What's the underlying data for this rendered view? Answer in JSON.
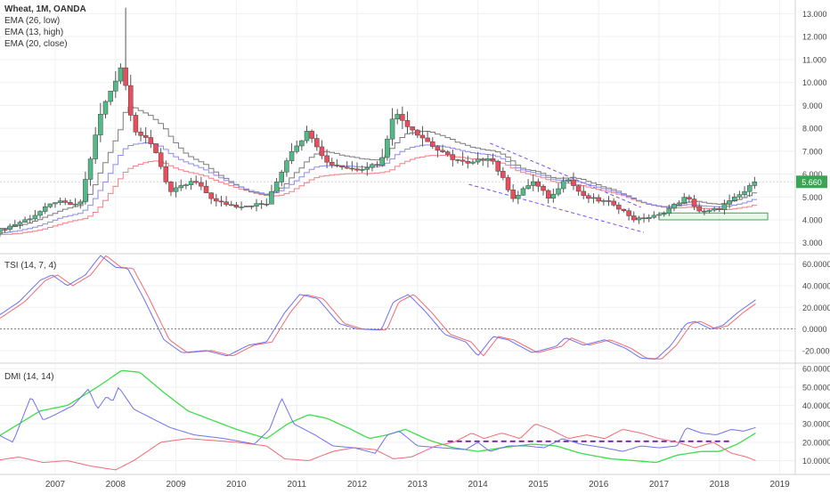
{
  "chart_data": [
    {
      "type": "candlestick",
      "title": "Wheat, 1M, OANDA",
      "legend": [
        "EMA (26, low)",
        "EMA (13, high)",
        "EMA (20, close)"
      ],
      "last_price": "5.660",
      "y_tick_labels": [
        "3.000",
        "4.000",
        "5.000",
        "6.000",
        "7.000",
        "8.000",
        "9.000",
        "10.000",
        "11.000",
        "12.000",
        "13.000"
      ],
      "x_tick_labels": [
        "2007",
        "2008",
        "2009",
        "2010",
        "2011",
        "2012",
        "2013",
        "2014",
        "2015",
        "2016",
        "2017",
        "2018",
        "2019"
      ],
      "ylim": [
        2.6,
        13.6
      ],
      "anchors": [
        {
          "t": 2006.0,
          "c": 3.45
        },
        {
          "t": 2006.6,
          "c": 4.1
        },
        {
          "t": 2007.0,
          "c": 4.8
        },
        {
          "t": 2007.4,
          "c": 4.6
        },
        {
          "t": 2007.75,
          "c": 8.6
        },
        {
          "t": 2008.1,
          "c": 10.8
        },
        {
          "t": 2008.3,
          "c": 8.0
        },
        {
          "t": 2008.65,
          "c": 7.1
        },
        {
          "t": 2008.9,
          "c": 5.2
        },
        {
          "t": 2009.3,
          "c": 5.7
        },
        {
          "t": 2009.65,
          "c": 4.8
        },
        {
          "t": 2010.0,
          "c": 4.6
        },
        {
          "t": 2010.5,
          "c": 4.7
        },
        {
          "t": 2010.9,
          "c": 7.0
        },
        {
          "t": 2011.2,
          "c": 7.9
        },
        {
          "t": 2011.5,
          "c": 6.5
        },
        {
          "t": 2011.95,
          "c": 6.2
        },
        {
          "t": 2012.4,
          "c": 6.5
        },
        {
          "t": 2012.6,
          "c": 8.7
        },
        {
          "t": 2012.95,
          "c": 7.9
        },
        {
          "t": 2013.4,
          "c": 6.9
        },
        {
          "t": 2013.85,
          "c": 6.4
        },
        {
          "t": 2014.2,
          "c": 6.8
        },
        {
          "t": 2014.6,
          "c": 4.9
        },
        {
          "t": 2014.9,
          "c": 5.7
        },
        {
          "t": 2015.2,
          "c": 4.9
        },
        {
          "t": 2015.45,
          "c": 5.9
        },
        {
          "t": 2015.75,
          "c": 5.0
        },
        {
          "t": 2016.25,
          "c": 4.7
        },
        {
          "t": 2016.6,
          "c": 4.0
        },
        {
          "t": 2017.0,
          "c": 4.2
        },
        {
          "t": 2017.45,
          "c": 5.0
        },
        {
          "t": 2017.7,
          "c": 4.3
        },
        {
          "t": 2018.0,
          "c": 4.5
        },
        {
          "t": 2018.4,
          "c": 5.2
        },
        {
          "t": 2018.6,
          "c": 5.66
        }
      ],
      "support_box": [
        4.0,
        4.3
      ],
      "channel": {
        "upper": [
          {
            "t": 2014.2,
            "y": 7.35
          },
          {
            "t": 2016.7,
            "y": 4.55
          }
        ],
        "lower": [
          {
            "t": 2013.85,
            "y": 5.55
          },
          {
            "t": 2016.75,
            "y": 3.45
          }
        ]
      },
      "colors": {
        "up": "#53b987",
        "down": "#eb4d5c",
        "wick": "#555555",
        "ema_low": "#f07f86",
        "ema_high": "#8c8aee",
        "ema_close": "#7a7a7a",
        "channel": "#7c4dff"
      }
    },
    {
      "type": "line",
      "title": "TSI (14, 7, 4)",
      "y_tick_labels": [
        "-20.0000",
        "0.0000",
        "20.0000",
        "40.0000",
        "60.0000"
      ],
      "ylim": [
        -30,
        68
      ],
      "zero_line": true,
      "anchors": [
        {
          "t": 2006.0,
          "v": 10
        },
        {
          "t": 2006.4,
          "v": 25
        },
        {
          "t": 2006.75,
          "v": 45
        },
        {
          "t": 2006.95,
          "v": 50
        },
        {
          "t": 2007.2,
          "v": 40
        },
        {
          "t": 2007.5,
          "v": 50
        },
        {
          "t": 2007.75,
          "v": 68
        },
        {
          "t": 2008.0,
          "v": 57
        },
        {
          "t": 2008.2,
          "v": 56
        },
        {
          "t": 2008.45,
          "v": 30
        },
        {
          "t": 2008.8,
          "v": -10
        },
        {
          "t": 2009.1,
          "v": -22
        },
        {
          "t": 2009.5,
          "v": -20
        },
        {
          "t": 2009.85,
          "v": -25
        },
        {
          "t": 2010.2,
          "v": -15
        },
        {
          "t": 2010.5,
          "v": -12
        },
        {
          "t": 2010.8,
          "v": 15
        },
        {
          "t": 2011.05,
          "v": 32
        },
        {
          "t": 2011.35,
          "v": 28
        },
        {
          "t": 2011.7,
          "v": 5
        },
        {
          "t": 2012.0,
          "v": 0
        },
        {
          "t": 2012.4,
          "v": -1
        },
        {
          "t": 2012.6,
          "v": 25
        },
        {
          "t": 2012.85,
          "v": 32
        },
        {
          "t": 2013.15,
          "v": 15
        },
        {
          "t": 2013.45,
          "v": -5
        },
        {
          "t": 2013.8,
          "v": -12
        },
        {
          "t": 2014.0,
          "v": -25
        },
        {
          "t": 2014.25,
          "v": -7
        },
        {
          "t": 2014.5,
          "v": -10
        },
        {
          "t": 2014.9,
          "v": -22
        },
        {
          "t": 2015.3,
          "v": -16
        },
        {
          "t": 2015.45,
          "v": -8
        },
        {
          "t": 2015.75,
          "v": -15
        },
        {
          "t": 2016.1,
          "v": -10
        },
        {
          "t": 2016.45,
          "v": -18
        },
        {
          "t": 2016.7,
          "v": -27
        },
        {
          "t": 2016.95,
          "v": -28
        },
        {
          "t": 2017.2,
          "v": -15
        },
        {
          "t": 2017.45,
          "v": 5
        },
        {
          "t": 2017.6,
          "v": 7
        },
        {
          "t": 2017.85,
          "v": 0
        },
        {
          "t": 2018.05,
          "v": 3
        },
        {
          "t": 2018.3,
          "v": 15
        },
        {
          "t": 2018.6,
          "v": 27
        }
      ],
      "signal_lag": 0.09,
      "colors": {
        "tsi": "#6f6ff0",
        "signal": "#f06a75",
        "zero": "#777777"
      }
    },
    {
      "type": "line",
      "title": "DMI (14, 14)",
      "y_tick_labels": [
        "10.0000",
        "20.0000",
        "30.0000",
        "40.0000",
        "50.0000",
        "60.0000"
      ],
      "ylim": [
        3,
        62
      ],
      "series": [
        {
          "color": "#3ddc4a",
          "points": [
            {
              "t": 2006.0,
              "v": 22
            },
            {
              "t": 2006.3,
              "v": 28
            },
            {
              "t": 2006.75,
              "v": 37
            },
            {
              "t": 2007.2,
              "v": 40
            },
            {
              "t": 2007.7,
              "v": 50
            },
            {
              "t": 2008.1,
              "v": 59
            },
            {
              "t": 2008.4,
              "v": 58
            },
            {
              "t": 2008.8,
              "v": 47
            },
            {
              "t": 2009.2,
              "v": 37
            },
            {
              "t": 2009.6,
              "v": 32
            },
            {
              "t": 2010.0,
              "v": 27
            },
            {
              "t": 2010.5,
              "v": 22
            },
            {
              "t": 2010.85,
              "v": 30
            },
            {
              "t": 2011.2,
              "v": 35
            },
            {
              "t": 2011.5,
              "v": 33
            },
            {
              "t": 2011.9,
              "v": 27
            },
            {
              "t": 2012.2,
              "v": 22
            },
            {
              "t": 2012.5,
              "v": 24
            },
            {
              "t": 2012.8,
              "v": 27
            },
            {
              "t": 2013.2,
              "v": 21
            },
            {
              "t": 2013.6,
              "v": 17
            },
            {
              "t": 2014.0,
              "v": 15
            },
            {
              "t": 2014.4,
              "v": 17
            },
            {
              "t": 2014.9,
              "v": 19
            },
            {
              "t": 2015.3,
              "v": 18
            },
            {
              "t": 2015.7,
              "v": 14
            },
            {
              "t": 2016.2,
              "v": 11
            },
            {
              "t": 2016.6,
              "v": 10
            },
            {
              "t": 2016.95,
              "v": 9
            },
            {
              "t": 2017.3,
              "v": 13
            },
            {
              "t": 2017.7,
              "v": 15
            },
            {
              "t": 2018.0,
              "v": 15
            },
            {
              "t": 2018.3,
              "v": 19
            },
            {
              "t": 2018.6,
              "v": 25
            }
          ]
        },
        {
          "color": "#7070f0",
          "points": [
            {
              "t": 2006.0,
              "v": 25
            },
            {
              "t": 2006.3,
              "v": 20
            },
            {
              "t": 2006.6,
              "v": 45
            },
            {
              "t": 2006.8,
              "v": 32
            },
            {
              "t": 2007.0,
              "v": 35
            },
            {
              "t": 2007.3,
              "v": 40
            },
            {
              "t": 2007.55,
              "v": 49
            },
            {
              "t": 2007.7,
              "v": 38
            },
            {
              "t": 2007.85,
              "v": 45
            },
            {
              "t": 2007.95,
              "v": 42
            },
            {
              "t": 2008.05,
              "v": 50
            },
            {
              "t": 2008.3,
              "v": 38
            },
            {
              "t": 2008.6,
              "v": 33
            },
            {
              "t": 2008.9,
              "v": 28
            },
            {
              "t": 2009.3,
              "v": 24
            },
            {
              "t": 2009.8,
              "v": 22
            },
            {
              "t": 2010.3,
              "v": 19
            },
            {
              "t": 2010.55,
              "v": 27
            },
            {
              "t": 2010.75,
              "v": 44
            },
            {
              "t": 2010.95,
              "v": 30
            },
            {
              "t": 2011.3,
              "v": 24
            },
            {
              "t": 2011.6,
              "v": 18
            },
            {
              "t": 2011.95,
              "v": 17
            },
            {
              "t": 2012.3,
              "v": 14
            },
            {
              "t": 2012.5,
              "v": 24
            },
            {
              "t": 2012.7,
              "v": 26
            },
            {
              "t": 2013.0,
              "v": 18
            },
            {
              "t": 2013.4,
              "v": 17
            },
            {
              "t": 2013.8,
              "v": 16
            },
            {
              "t": 2014.0,
              "v": 20
            },
            {
              "t": 2014.2,
              "v": 15
            },
            {
              "t": 2014.5,
              "v": 18
            },
            {
              "t": 2014.8,
              "v": 18
            },
            {
              "t": 2015.1,
              "v": 17
            },
            {
              "t": 2015.4,
              "v": 22
            },
            {
              "t": 2015.7,
              "v": 19
            },
            {
              "t": 2016.1,
              "v": 17
            },
            {
              "t": 2016.4,
              "v": 15
            },
            {
              "t": 2016.7,
              "v": 18
            },
            {
              "t": 2017.0,
              "v": 17
            },
            {
              "t": 2017.3,
              "v": 18
            },
            {
              "t": 2017.45,
              "v": 28
            },
            {
              "t": 2017.7,
              "v": 25
            },
            {
              "t": 2017.95,
              "v": 24
            },
            {
              "t": 2018.2,
              "v": 27
            },
            {
              "t": 2018.4,
              "v": 26
            },
            {
              "t": 2018.6,
              "v": 28
            }
          ]
        },
        {
          "color": "#f06a75",
          "points": [
            {
              "t": 2006.0,
              "v": 10
            },
            {
              "t": 2006.4,
              "v": 12
            },
            {
              "t": 2006.8,
              "v": 9
            },
            {
              "t": 2007.2,
              "v": 10
            },
            {
              "t": 2007.6,
              "v": 7
            },
            {
              "t": 2008.0,
              "v": 5
            },
            {
              "t": 2008.3,
              "v": 10
            },
            {
              "t": 2008.75,
              "v": 20
            },
            {
              "t": 2009.2,
              "v": 22
            },
            {
              "t": 2009.6,
              "v": 21
            },
            {
              "t": 2010.0,
              "v": 20
            },
            {
              "t": 2010.5,
              "v": 18
            },
            {
              "t": 2010.8,
              "v": 11
            },
            {
              "t": 2011.2,
              "v": 10
            },
            {
              "t": 2011.6,
              "v": 15
            },
            {
              "t": 2011.95,
              "v": 17
            },
            {
              "t": 2012.3,
              "v": 16
            },
            {
              "t": 2012.6,
              "v": 11
            },
            {
              "t": 2012.9,
              "v": 12
            },
            {
              "t": 2013.3,
              "v": 18
            },
            {
              "t": 2013.6,
              "v": 20
            },
            {
              "t": 2013.9,
              "v": 25
            },
            {
              "t": 2014.1,
              "v": 22
            },
            {
              "t": 2014.4,
              "v": 25
            },
            {
              "t": 2014.7,
              "v": 22
            },
            {
              "t": 2014.95,
              "v": 30
            },
            {
              "t": 2015.2,
              "v": 27
            },
            {
              "t": 2015.5,
              "v": 22
            },
            {
              "t": 2015.8,
              "v": 24
            },
            {
              "t": 2016.1,
              "v": 22
            },
            {
              "t": 2016.4,
              "v": 27
            },
            {
              "t": 2016.7,
              "v": 25
            },
            {
              "t": 2017.0,
              "v": 22
            },
            {
              "t": 2017.3,
              "v": 20
            },
            {
              "t": 2017.6,
              "v": 17
            },
            {
              "t": 2017.9,
              "v": 20
            },
            {
              "t": 2018.2,
              "v": 14
            },
            {
              "t": 2018.45,
              "v": 12
            },
            {
              "t": 2018.6,
              "v": 10
            }
          ]
        }
      ],
      "dashed_level": {
        "value": 20.5,
        "from": 2013.5,
        "to": 2018.2,
        "color": "#7c1fa8"
      }
    }
  ]
}
